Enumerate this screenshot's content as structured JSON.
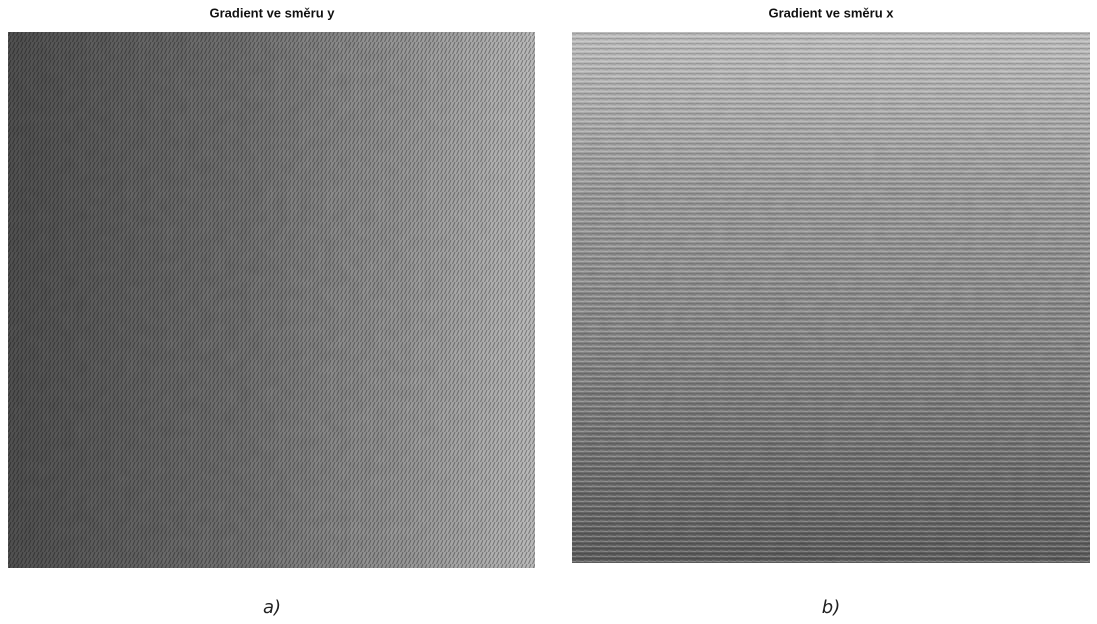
{
  "panels": [
    {
      "title": "Gradient ve směru y",
      "caption": "a)"
    },
    {
      "title": "Gradient ve směru x",
      "caption": "b)"
    }
  ]
}
